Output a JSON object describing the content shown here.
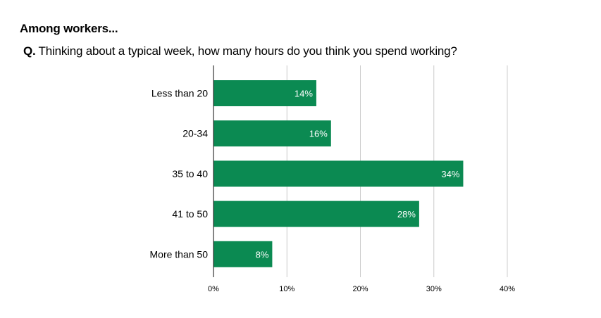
{
  "header": {
    "title": "Among workers...",
    "question_prefix": "Q.",
    "question_text": "Thinking about a typical week, how many hours do you think you spend working?"
  },
  "chart_data": {
    "type": "bar",
    "orientation": "horizontal",
    "categories": [
      "Less than 20",
      "20-34",
      "35 to 40",
      "41 to 50",
      "More than 50"
    ],
    "values": [
      14,
      16,
      34,
      28,
      8
    ],
    "value_labels": [
      "14%",
      "16%",
      "34%",
      "28%",
      "8%"
    ],
    "xlim": [
      0,
      40
    ],
    "x_ticks": [
      0,
      10,
      20,
      30,
      40
    ],
    "x_tick_labels": [
      "0%",
      "10%",
      "20%",
      "30%",
      "40%"
    ],
    "grid": "vertical",
    "colors": {
      "bar": "#0B8A52",
      "grid": "#CCCCCC",
      "axis": "#333333",
      "bar_label": "#FFFFFF"
    }
  }
}
